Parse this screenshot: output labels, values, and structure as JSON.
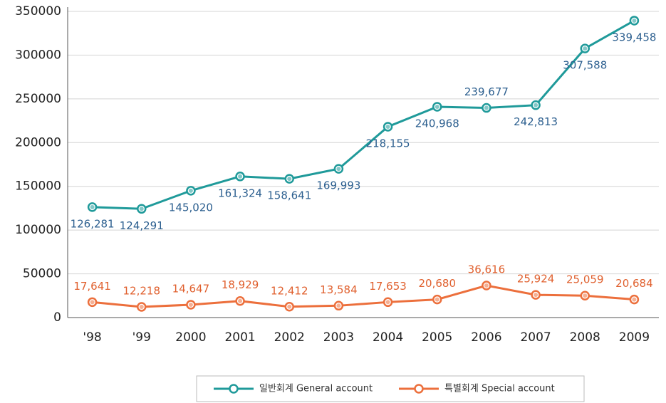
{
  "chart_data": {
    "type": "line",
    "categories": [
      "'98",
      "'99",
      "2000",
      "2001",
      "2002",
      "2003",
      "2004",
      "2005",
      "2006",
      "2007",
      "2008",
      "2009"
    ],
    "series": [
      {
        "name": "일반회계 General account",
        "color": "#1f9a9a",
        "label_color": "#2c5f8f",
        "values": [
          126281,
          124291,
          145020,
          161324,
          158641,
          169993,
          218155,
          240968,
          239677,
          242813,
          307588,
          339458
        ],
        "value_labels": [
          "126,281",
          "124,291",
          "145,020",
          "161,324",
          "158,641",
          "169,993",
          "218,155",
          "240,968",
          "239,677",
          "242,813",
          "307,588",
          "339,458"
        ]
      },
      {
        "name": "특별회계 Special account",
        "color": "#ec6f3c",
        "label_color": "#e0602e",
        "values": [
          17641,
          12218,
          14647,
          18929,
          12412,
          13584,
          17653,
          20680,
          36616,
          25924,
          25059,
          20684
        ],
        "value_labels": [
          "17,641",
          "12,218",
          "14,647",
          "18,929",
          "12,412",
          "13,584",
          "17,653",
          "20,680",
          "36,616",
          "25,924",
          "25,059",
          "20,684"
        ]
      }
    ],
    "ylim": [
      0,
      350000
    ],
    "yticks": [
      0,
      50000,
      100000,
      150000,
      200000,
      250000,
      300000,
      350000
    ],
    "grid": true,
    "legend": "bottom"
  }
}
